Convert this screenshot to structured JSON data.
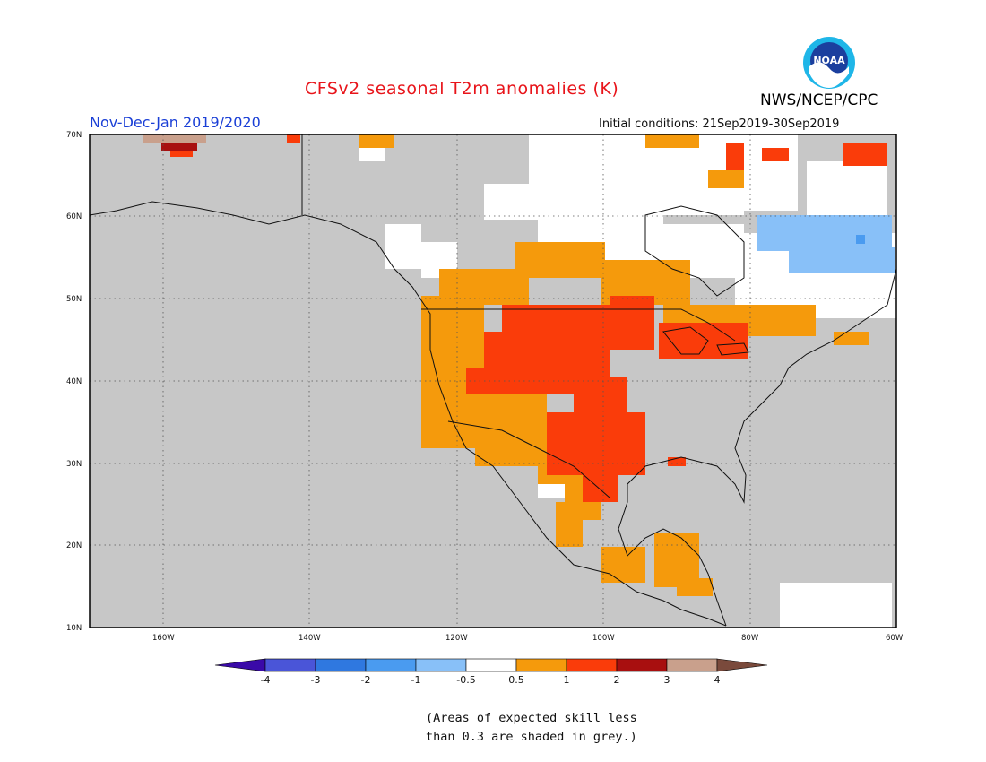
{
  "title": "CFSv2 seasonal T2m anomalies (K)",
  "period": "Nov-Dec-Jan 2019/2020",
  "initial_conditions": "Initial conditions: 21Sep2019-30Sep2019",
  "agency": "NWS/NCEP/CPC",
  "logo": {
    "label": "NOAA",
    "icon": "noaa-logo-icon"
  },
  "map": {
    "lon_range": [
      -172,
      -60
    ],
    "lat_range": [
      10,
      70
    ],
    "lat_labels": [
      "70N",
      "60N",
      "50N",
      "40N",
      "30N",
      "20N",
      "10N"
    ],
    "lon_labels": [
      "160W",
      "140W",
      "120W",
      "100W",
      "80W",
      "60W"
    ],
    "grid": "dotted"
  },
  "legend": {
    "colors": [
      "#3a0aa8",
      "#4a55d8",
      "#2f78e0",
      "#4a9bf0",
      "#88c0f8",
      "#ffffff",
      "#f59a0c",
      "#fa3c0a",
      "#a80f0f",
      "#c9a08c",
      "#7a4a3c"
    ],
    "labels": [
      "-4",
      "-3",
      "-2",
      "-1",
      "-0.5",
      "0.5",
      "1",
      "2",
      "3",
      "4"
    ]
  },
  "note": [
    "(Areas of expected skill less",
    "than 0.3 are shaded in grey.)"
  ],
  "colors": {
    "grey_no_skill": "#c7c7c7",
    "neutral": "#ffffff",
    "warm_0_5_1": "#f59a0c",
    "warm_1_2": "#fa3c0a",
    "warm_2_3": "#a80f0f",
    "warm_3_4": "#c9a08c",
    "cool_0_5_1": "#88c0f8",
    "cool_1_2": "#4a9bf0"
  }
}
